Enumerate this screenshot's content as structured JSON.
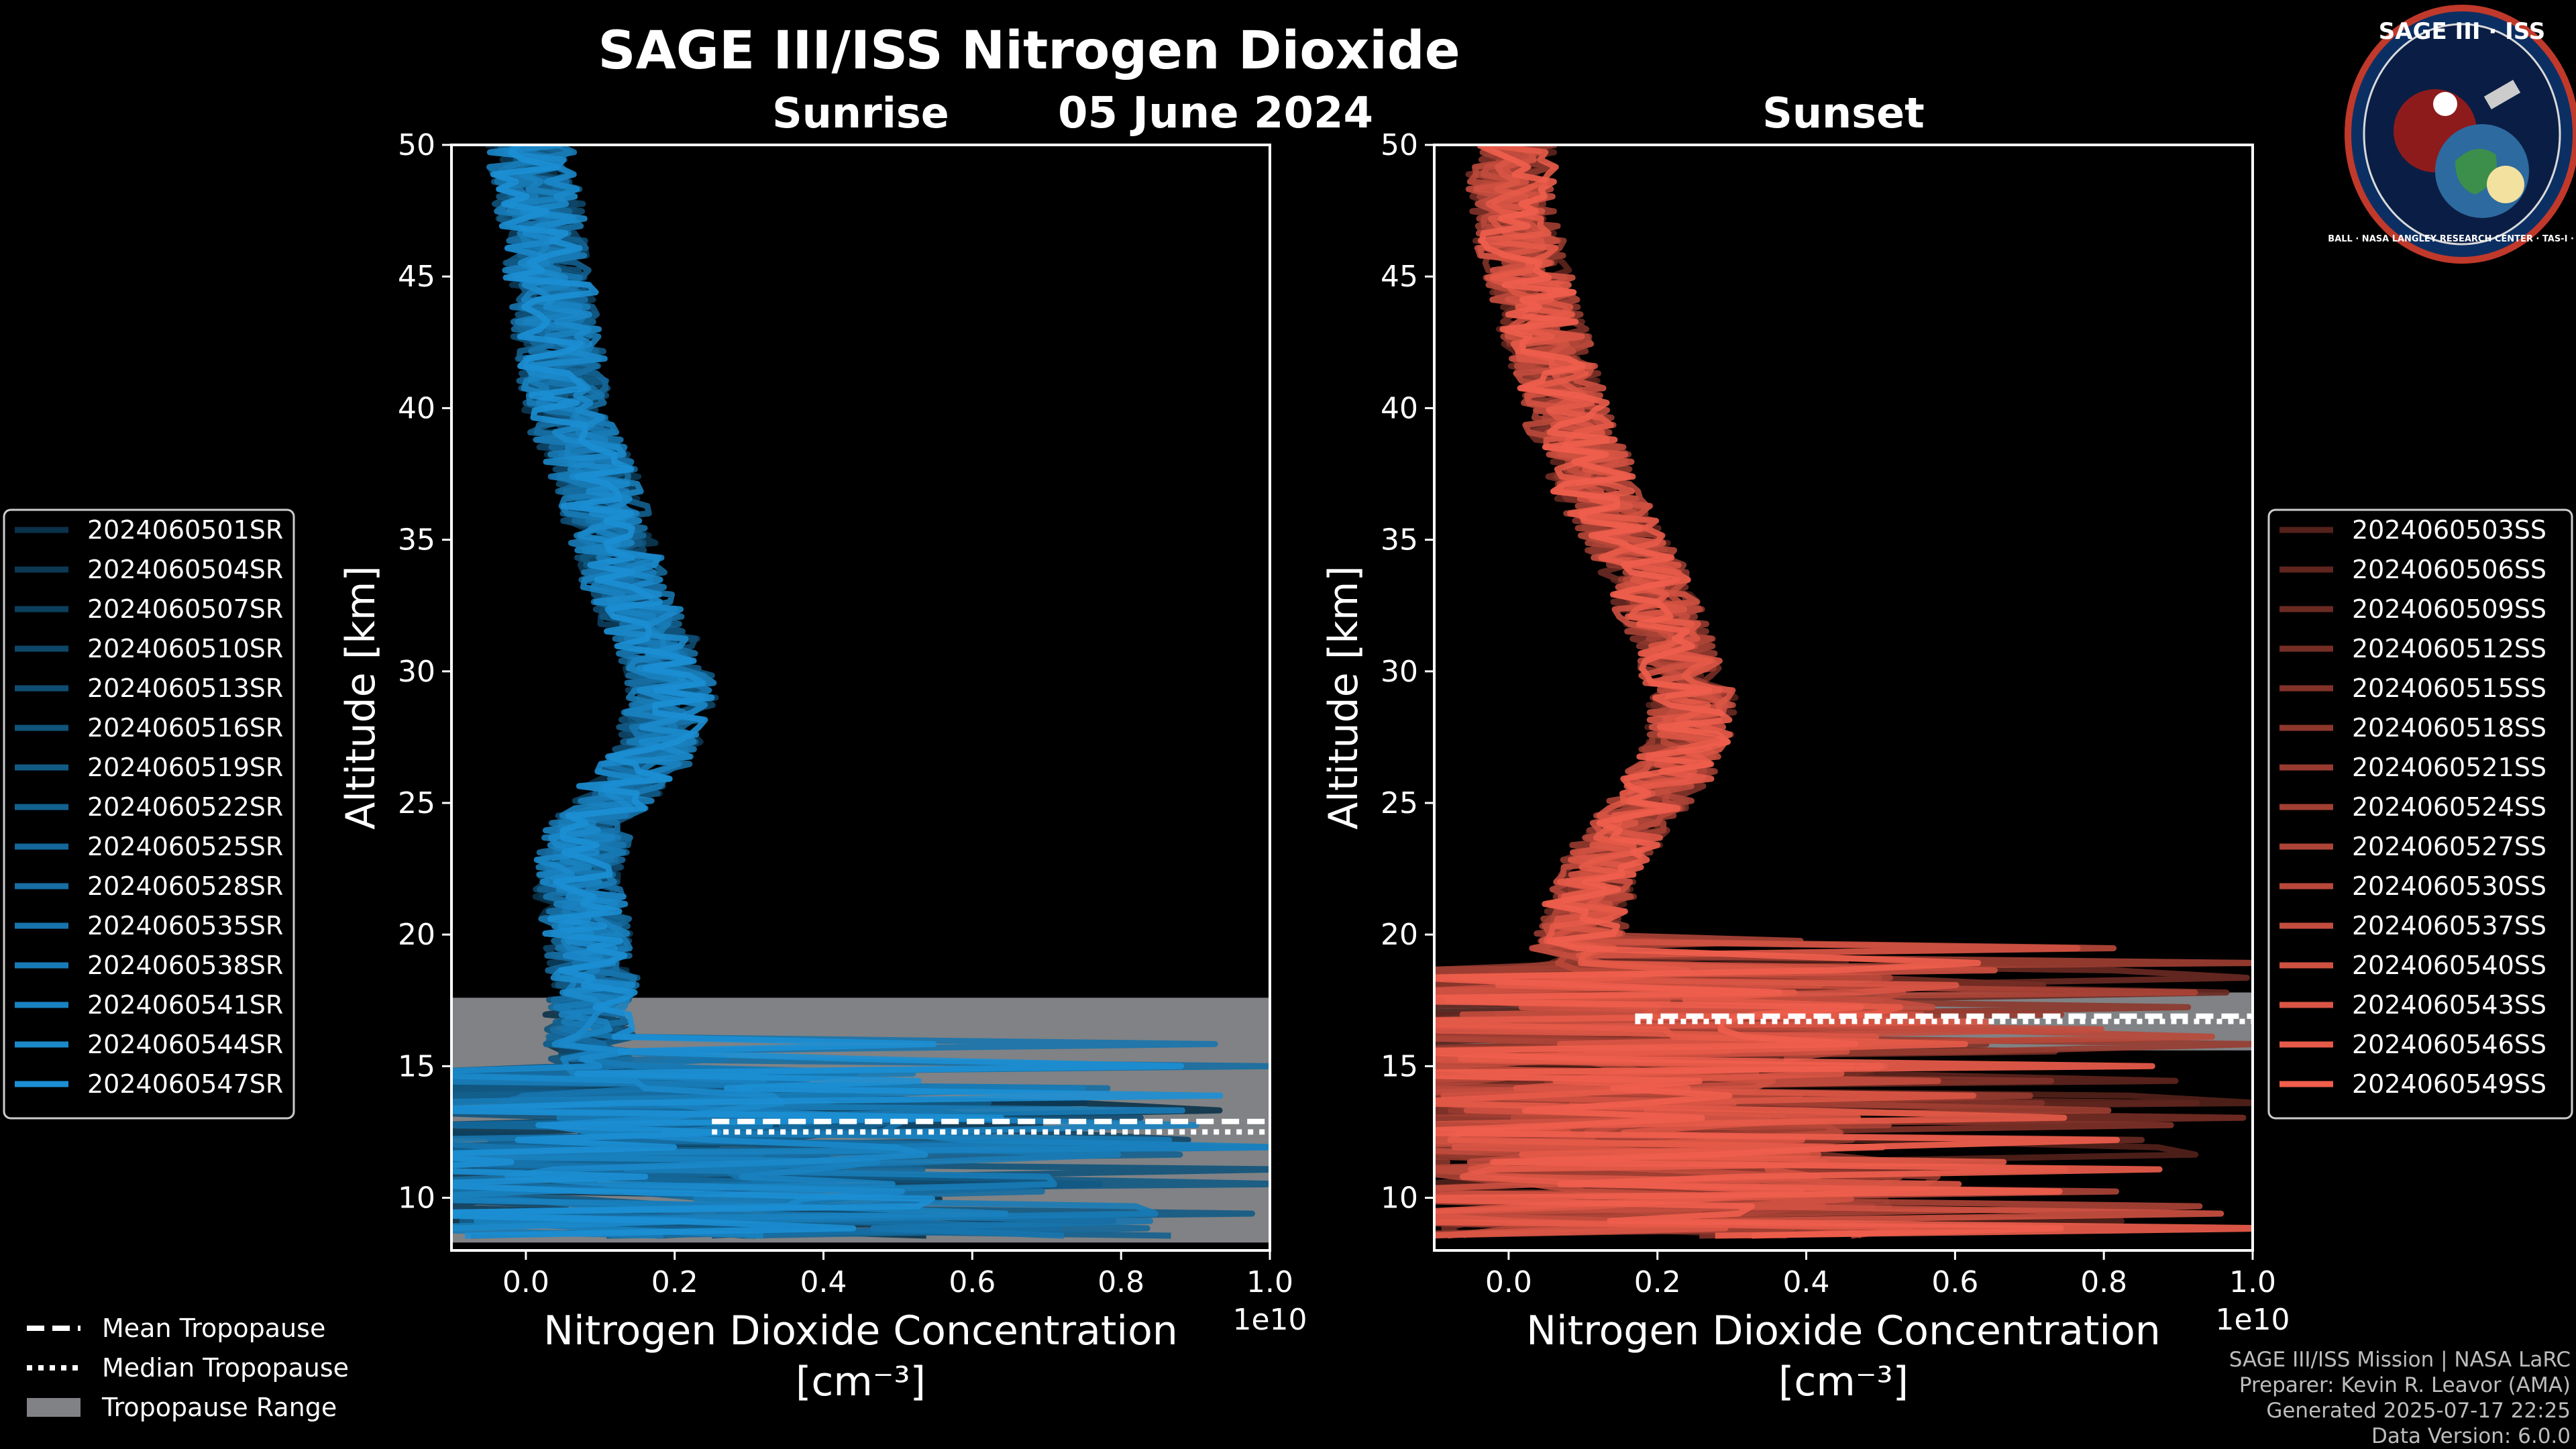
{
  "title": "SAGE III/ISS Nitrogen Dioxide",
  "subtitle": "05 June 2024",
  "logo": {
    "top_text": "SAGE III · ISS",
    "ring_text": "BALL · NASA LANGLEY RESEARCH CENTER · TAS-I · ESA"
  },
  "colors": {
    "sunrise": "#1c8fd4",
    "sunset": "#f05e4c",
    "tropopause_range": "#808285",
    "background": "#000000"
  },
  "chart_data": [
    {
      "type": "line",
      "panel": "Sunrise",
      "title": "Sunrise",
      "xlabel": "Nitrogen Dioxide Concentration",
      "xlabel_unit": "[cm⁻³]",
      "x_scale_note": "1e10",
      "ylabel": "Altitude [km]",
      "xlim": [
        -0.1,
        1.0
      ],
      "ylim": [
        8,
        50
      ],
      "x_ticks": [
        0.0,
        0.2,
        0.4,
        0.6,
        0.8,
        1.0
      ],
      "x_tick_labels": [
        "0.0",
        "0.2",
        "0.4",
        "0.6",
        "0.8",
        "1.0"
      ],
      "y_ticks": [
        10,
        15,
        20,
        25,
        30,
        35,
        40,
        45,
        50
      ],
      "y_tick_labels": [
        "10",
        "15",
        "20",
        "25",
        "30",
        "35",
        "40",
        "45",
        "50"
      ],
      "tropopause_range_km": [
        8.3,
        17.6
      ],
      "mean_tropopause_km": 12.9,
      "median_tropopause_km": 12.5,
      "tropopause_line_x_start": 0.25,
      "legend_position": "left",
      "mean_profile": {
        "altitude_km": [
          8,
          10,
          12,
          14,
          16,
          17,
          18,
          19,
          20,
          21,
          22,
          23,
          24,
          25,
          26,
          27,
          28,
          29,
          30,
          31,
          32,
          33,
          34,
          35,
          36,
          37,
          38,
          39,
          40,
          42,
          44,
          46,
          48,
          50
        ],
        "concentration_1e10": [
          0.15,
          0.12,
          0.1,
          0.09,
          0.08,
          0.08,
          0.09,
          0.08,
          0.08,
          0.07,
          0.06,
          0.07,
          0.08,
          0.1,
          0.14,
          0.17,
          0.18,
          0.19,
          0.19,
          0.17,
          0.15,
          0.13,
          0.12,
          0.11,
          0.1,
          0.09,
          0.08,
          0.06,
          0.05,
          0.04,
          0.03,
          0.02,
          0.01,
          0.0
        ]
      },
      "series": [
        {
          "name": "2024060501SR"
        },
        {
          "name": "2024060504SR"
        },
        {
          "name": "2024060507SR"
        },
        {
          "name": "2024060510SR"
        },
        {
          "name": "2024060513SR"
        },
        {
          "name": "2024060516SR"
        },
        {
          "name": "2024060519SR"
        },
        {
          "name": "2024060522SR"
        },
        {
          "name": "2024060525SR"
        },
        {
          "name": "2024060528SR"
        },
        {
          "name": "2024060535SR"
        },
        {
          "name": "2024060538SR"
        },
        {
          "name": "2024060541SR"
        },
        {
          "name": "2024060544SR"
        },
        {
          "name": "2024060547SR"
        }
      ]
    },
    {
      "type": "line",
      "panel": "Sunset",
      "title": "Sunset",
      "xlabel": "Nitrogen Dioxide Concentration",
      "xlabel_unit": "[cm⁻³]",
      "x_scale_note": "1e10",
      "ylabel": "Altitude [km]",
      "xlim": [
        -0.1,
        1.0
      ],
      "ylim": [
        8,
        50
      ],
      "x_ticks": [
        0.0,
        0.2,
        0.4,
        0.6,
        0.8,
        1.0
      ],
      "x_tick_labels": [
        "0.0",
        "0.2",
        "0.4",
        "0.6",
        "0.8",
        "1.0"
      ],
      "y_ticks": [
        10,
        15,
        20,
        25,
        30,
        35,
        40,
        45,
        50
      ],
      "y_tick_labels": [
        "10",
        "15",
        "20",
        "25",
        "30",
        "35",
        "40",
        "45",
        "50"
      ],
      "tropopause_range_km": [
        15.6,
        17.8
      ],
      "mean_tropopause_km": 16.9,
      "median_tropopause_km": 16.7,
      "tropopause_line_x_start": 0.17,
      "legend_position": "right",
      "mean_profile": {
        "altitude_km": [
          9,
          10,
          12,
          14,
          16,
          17,
          18,
          19,
          20,
          21,
          22,
          23,
          24,
          25,
          26,
          27,
          28,
          29,
          30,
          31,
          32,
          33,
          34,
          35,
          36,
          37,
          38,
          39,
          40,
          42,
          44,
          46,
          48,
          50
        ],
        "concentration_1e10": [
          0.1,
          0.1,
          0.09,
          0.08,
          0.06,
          0.06,
          0.07,
          0.08,
          0.09,
          0.1,
          0.11,
          0.13,
          0.15,
          0.18,
          0.21,
          0.23,
          0.24,
          0.24,
          0.23,
          0.22,
          0.2,
          0.19,
          0.17,
          0.15,
          0.13,
          0.11,
          0.1,
          0.08,
          0.07,
          0.05,
          0.03,
          0.01,
          0.0,
          0.0
        ]
      },
      "series": [
        {
          "name": "2024060503SS"
        },
        {
          "name": "2024060506SS"
        },
        {
          "name": "2024060509SS"
        },
        {
          "name": "2024060512SS"
        },
        {
          "name": "2024060515SS"
        },
        {
          "name": "2024060518SS"
        },
        {
          "name": "2024060521SS"
        },
        {
          "name": "2024060524SS"
        },
        {
          "name": "2024060527SS"
        },
        {
          "name": "2024060530SS"
        },
        {
          "name": "2024060537SS"
        },
        {
          "name": "2024060540SS"
        },
        {
          "name": "2024060543SS"
        },
        {
          "name": "2024060546SS"
        },
        {
          "name": "2024060549SS"
        }
      ]
    }
  ],
  "tropopause_legend": {
    "mean_label": "Mean Tropopause",
    "median_label": "Median Tropopause",
    "range_label": "Tropopause Range"
  },
  "credits": [
    "SAGE III/ISS Mission | NASA LaRC",
    "Preparer: Kevin R. Leavor (AMA)",
    "Generated 2025-07-17 22:25",
    "Data Version: 6.0.0"
  ]
}
